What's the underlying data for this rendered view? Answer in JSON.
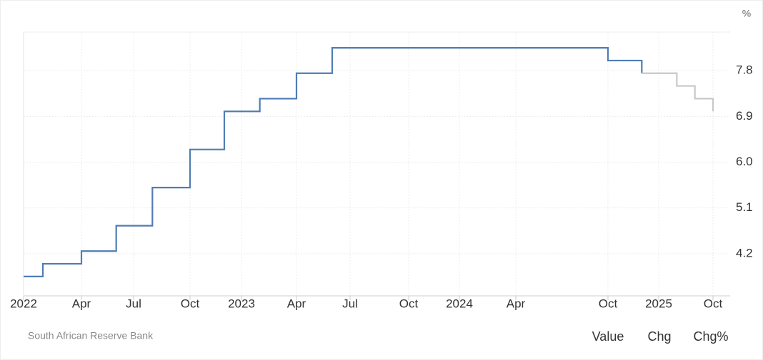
{
  "chart_data": {
    "type": "step",
    "ylabel": "%",
    "series": [
      {
        "color": "#4f7db3",
        "x": [
          "2022-01",
          "2022-02",
          "2022-04",
          "2022-06",
          "2022-08",
          "2022-10",
          "2022-12",
          "2023-02",
          "2023-04",
          "2023-06",
          "2024-10",
          "2024-12"
        ],
        "values": [
          3.75,
          4.0,
          4.25,
          4.75,
          5.5,
          6.25,
          7.0,
          7.25,
          7.75,
          8.25,
          8.0,
          7.75
        ]
      },
      {
        "color": "#c8c8c8",
        "x": [
          "2024-12",
          "2025-04",
          "2025-07",
          "2025-10"
        ],
        "values": [
          7.75,
          7.5,
          7.25,
          7.0
        ]
      }
    ],
    "ylim": [
      3.37,
      8.56
    ],
    "yticks": [
      4.2,
      5.1,
      {
        "value": 6,
        "label": "6.0"
      },
      6.9,
      7.8
    ],
    "xticks": [
      {
        "value": "2022-01",
        "label": "2022"
      },
      {
        "value": "2022-04",
        "label": "Apr"
      },
      {
        "value": "2022-07",
        "label": "Jul"
      },
      {
        "value": "2022-10",
        "label": "Oct"
      },
      {
        "value": "2023-01",
        "label": "2023"
      },
      {
        "value": "2023-04",
        "label": "Apr"
      },
      {
        "value": "2023-07",
        "label": "Jul"
      },
      {
        "value": "2023-10",
        "label": "Oct"
      },
      {
        "value": "2024-01",
        "label": "2024"
      },
      {
        "value": "2024-04",
        "label": "Apr"
      },
      {
        "value": "2024-10",
        "label": "Oct"
      },
      {
        "value": "2025-01",
        "label": "2025"
      },
      {
        "value": "2025-10",
        "label": "Oct"
      }
    ],
    "grid": true,
    "source": "South African Reserve Bank"
  },
  "tabs": [
    "Value",
    "Chg",
    "Chg%"
  ],
  "active_tab": 0
}
